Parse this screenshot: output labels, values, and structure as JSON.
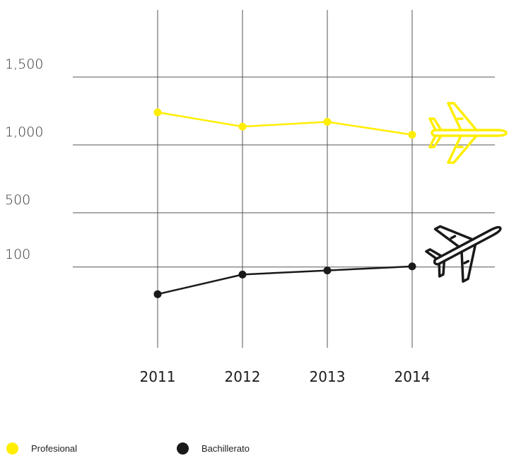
{
  "chart_data": {
    "type": "line",
    "title": "",
    "xlabel": "",
    "ylabel": "",
    "categories": [
      "2011",
      "2012",
      "2013",
      "2014"
    ],
    "yticks": [
      {
        "value": 1500,
        "label": "1,500"
      },
      {
        "value": 1000,
        "label": "1,000"
      },
      {
        "value": 500,
        "label": "500"
      },
      {
        "value": 100,
        "label": "100"
      }
    ],
    "series": [
      {
        "name": "Profesional",
        "color": "#ffee00",
        "icon": "airplane-icon-outline-yellow",
        "values": [
          1240,
          1135,
          1170,
          1075
        ]
      },
      {
        "name": "Bachillerato",
        "color": "#1a1a1a",
        "icon": "airplane-icon-outline-black",
        "values": [
          -100,
          45,
          75,
          105
        ]
      }
    ],
    "grid": "horizontal-at-ticks-and-vertical-at-categories",
    "legend_position": "bottom-left"
  }
}
